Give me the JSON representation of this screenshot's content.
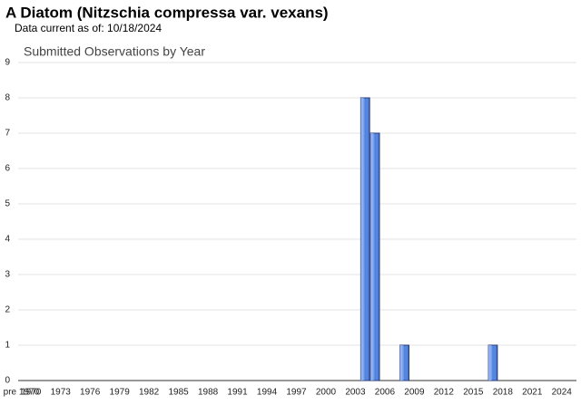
{
  "header": {
    "title": "A Diatom   (Nitzschia compressa var. vexans)",
    "subtitle": "Data current as of: 10/18/2024"
  },
  "chart_data": {
    "type": "bar",
    "title": "Submitted Observations by Year",
    "categories": [
      "pre 1970",
      "1970",
      null,
      null,
      "1973",
      null,
      null,
      "1976",
      null,
      null,
      "1979",
      null,
      null,
      "1982",
      null,
      null,
      "1985",
      null,
      null,
      "1988",
      null,
      null,
      "1991",
      null,
      null,
      "1994",
      null,
      null,
      "1997",
      null,
      null,
      "2000",
      null,
      null,
      "2003",
      null,
      null,
      "2006",
      null,
      null,
      "2009",
      null,
      null,
      "2012",
      null,
      null,
      "2015",
      null,
      null,
      "2018",
      null,
      null,
      "2021",
      null,
      null,
      "2024",
      null
    ],
    "values": [
      0,
      0,
      0,
      0,
      0,
      0,
      0,
      0,
      0,
      0,
      0,
      0,
      0,
      0,
      0,
      0,
      0,
      0,
      0,
      0,
      0,
      0,
      0,
      0,
      0,
      0,
      0,
      0,
      0,
      0,
      0,
      0,
      0,
      0,
      0,
      8,
      7,
      0,
      0,
      1,
      0,
      0,
      0,
      0,
      0,
      0,
      0,
      0,
      1,
      0,
      0,
      0,
      0,
      0,
      0,
      0,
      0
    ],
    "color": "#4a7fe0",
    "ylim": [
      0,
      9
    ],
    "yticks": [
      0,
      1,
      2,
      3,
      4,
      5,
      6,
      7,
      8,
      9
    ],
    "grid": true
  }
}
